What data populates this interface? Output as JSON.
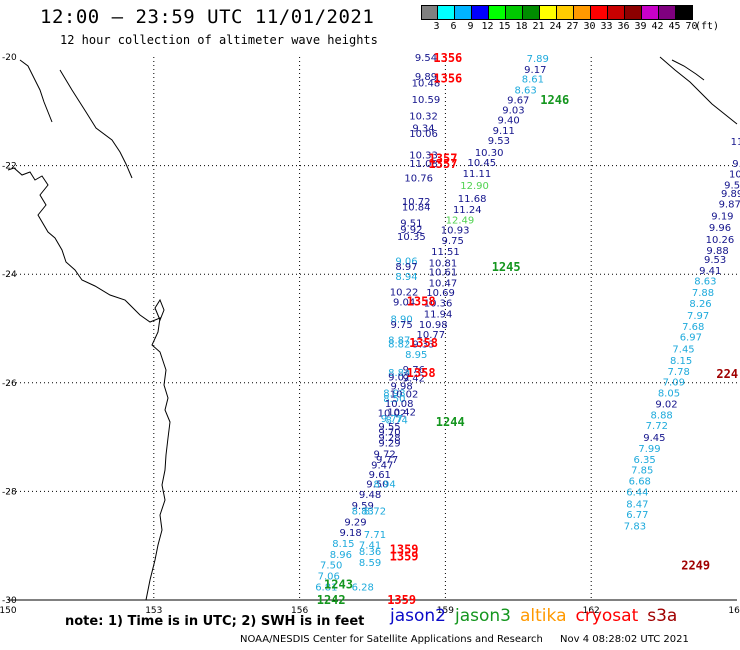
{
  "header": {
    "title": "12:00 — 23:59 UTC 11/01/2021",
    "subtitle": "12 hour collection of altimeter wave heights"
  },
  "legend": {
    "unit": "(ft)",
    "bins": [
      {
        "label": "3",
        "color": "#808080"
      },
      {
        "label": "6",
        "color": "#00ffff"
      },
      {
        "label": "9",
        "color": "#00b4ff"
      },
      {
        "label": "12",
        "color": "#0000ff"
      },
      {
        "label": "15",
        "color": "#00ff00"
      },
      {
        "label": "18",
        "color": "#00c800"
      },
      {
        "label": "21",
        "color": "#008c00"
      },
      {
        "label": "24",
        "color": "#ffff00"
      },
      {
        "label": "27",
        "color": "#ffcc00"
      },
      {
        "label": "30",
        "color": "#ff9900"
      },
      {
        "label": "33",
        "color": "#ff0000"
      },
      {
        "label": "36",
        "color": "#c80000"
      },
      {
        "label": "39",
        "color": "#8c0000"
      },
      {
        "label": "42",
        "color": "#c800c8"
      },
      {
        "label": "45",
        "color": "#7f007f"
      },
      {
        "label": "70",
        "color": "#000000"
      }
    ]
  },
  "colors": {
    "jason2": "#0a0ac8",
    "jason3": "#14961e",
    "altika": "#ff9900",
    "cryosat": "#ff0000",
    "s3a": "#a00000",
    "swh_cyan": "#1eaadc",
    "swh_blue": "#14148c",
    "swh_green": "#50d250"
  },
  "chart_data": {
    "type": "scatter",
    "xlim": [
      150,
      165
    ],
    "ylim": [
      -30,
      -20
    ],
    "x_ticks": [
      "150",
      "153",
      "156",
      "159",
      "162",
      "165"
    ],
    "y_ticks": [
      "-20",
      "-22",
      "-24",
      "-26",
      "-28",
      "-30"
    ],
    "grid": true,
    "track_labels": [
      {
        "text": "1356",
        "x": 159.05,
        "y": -20.0,
        "color": "cryosat"
      },
      {
        "text": "1356",
        "x": 159.05,
        "y": -20.38,
        "color": "cryosat"
      },
      {
        "text": "1246",
        "x": 161.25,
        "y": -20.77,
        "color": "jason3"
      },
      {
        "text": "1357",
        "x": 158.95,
        "y": -21.85,
        "color": "cryosat"
      },
      {
        "text": "1357",
        "x": 158.95,
        "y": -21.95,
        "color": "cryosat"
      },
      {
        "text": "1245",
        "x": 160.25,
        "y": -23.85,
        "color": "jason3"
      },
      {
        "text": "1358",
        "x": 158.5,
        "y": -24.48,
        "color": "cryosat"
      },
      {
        "text": "1358",
        "x": 158.55,
        "y": -25.25,
        "color": "cryosat"
      },
      {
        "text": "1358",
        "x": 158.5,
        "y": -25.8,
        "color": "cryosat"
      },
      {
        "text": "1244",
        "x": 159.1,
        "y": -26.7,
        "color": "jason3"
      },
      {
        "text": "1359",
        "x": 158.15,
        "y": -29.05,
        "color": "cryosat"
      },
      {
        "text": "1359",
        "x": 158.15,
        "y": -29.18,
        "color": "cryosat"
      },
      {
        "text": "1243",
        "x": 156.8,
        "y": -29.7,
        "color": "jason3"
      },
      {
        "text": "1242",
        "x": 156.65,
        "y": -29.98,
        "color": "jason3"
      },
      {
        "text": "1359",
        "x": 158.1,
        "y": -29.98,
        "color": "cryosat"
      },
      {
        "text": "2249",
        "x": 164.15,
        "y": -29.35,
        "color": "s3a"
      },
      {
        "text": "224",
        "x": 164.8,
        "y": -25.82,
        "color": "s3a"
      }
    ],
    "points": [
      {
        "x": 158.6,
        "y": -20.0,
        "v": "9.54",
        "c": "swh_blue"
      },
      {
        "x": 160.9,
        "y": -20.02,
        "v": "7.89",
        "c": "swh_cyan"
      },
      {
        "x": 160.85,
        "y": -20.22,
        "v": "9.17",
        "c": "swh_blue"
      },
      {
        "x": 158.6,
        "y": -20.35,
        "v": "9.89",
        "c": "swh_blue"
      },
      {
        "x": 158.6,
        "y": -20.47,
        "v": "10.48",
        "c": "swh_blue"
      },
      {
        "x": 160.8,
        "y": -20.4,
        "v": "8.61",
        "c": "swh_cyan"
      },
      {
        "x": 160.65,
        "y": -20.6,
        "v": "8.63",
        "c": "swh_cyan"
      },
      {
        "x": 158.6,
        "y": -20.77,
        "v": "10.59",
        "c": "swh_blue"
      },
      {
        "x": 160.5,
        "y": -20.78,
        "v": "9.67",
        "c": "swh_blue"
      },
      {
        "x": 160.4,
        "y": -20.97,
        "v": "9.03",
        "c": "swh_blue"
      },
      {
        "x": 158.55,
        "y": -21.08,
        "v": "10.32",
        "c": "swh_blue"
      },
      {
        "x": 160.3,
        "y": -21.15,
        "v": "9.40",
        "c": "swh_blue"
      },
      {
        "x": 158.55,
        "y": -21.3,
        "v": "9.34",
        "c": "swh_blue"
      },
      {
        "x": 160.2,
        "y": -21.34,
        "v": "9.11",
        "c": "swh_blue"
      },
      {
        "x": 158.55,
        "y": -21.4,
        "v": "10.06",
        "c": "swh_blue"
      },
      {
        "x": 160.1,
        "y": -21.53,
        "v": "9.53",
        "c": "swh_blue"
      },
      {
        "x": 158.55,
        "y": -21.8,
        "v": "10.33",
        "c": "swh_blue"
      },
      {
        "x": 159.9,
        "y": -21.75,
        "v": "10.30",
        "c": "swh_blue"
      },
      {
        "x": 158.55,
        "y": -21.95,
        "v": "11.08",
        "c": "swh_blue"
      },
      {
        "x": 159.75,
        "y": -21.93,
        "v": "10.45",
        "c": "swh_blue"
      },
      {
        "x": 158.45,
        "y": -22.22,
        "v": "10.76",
        "c": "swh_blue"
      },
      {
        "x": 159.65,
        "y": -22.14,
        "v": "11.11",
        "c": "swh_blue"
      },
      {
        "x": 159.6,
        "y": -22.36,
        "v": "12.90",
        "c": "swh_green"
      },
      {
        "x": 158.4,
        "y": -22.65,
        "v": "10.72",
        "c": "swh_blue"
      },
      {
        "x": 159.55,
        "y": -22.6,
        "v": "11.68",
        "c": "swh_blue"
      },
      {
        "x": 158.4,
        "y": -22.75,
        "v": "10.84",
        "c": "swh_blue"
      },
      {
        "x": 159.45,
        "y": -22.8,
        "v": "11.24",
        "c": "swh_blue"
      },
      {
        "x": 159.3,
        "y": -22.99,
        "v": "12.49",
        "c": "swh_green"
      },
      {
        "x": 158.3,
        "y": -23.05,
        "v": "9.51",
        "c": "swh_blue"
      },
      {
        "x": 159.2,
        "y": -23.18,
        "v": "10.93",
        "c": "swh_blue"
      },
      {
        "x": 158.3,
        "y": -23.17,
        "v": "9.92",
        "c": "swh_blue"
      },
      {
        "x": 158.3,
        "y": -23.3,
        "v": "10.35",
        "c": "swh_blue"
      },
      {
        "x": 159.15,
        "y": -23.37,
        "v": "9.75",
        "c": "swh_blue"
      },
      {
        "x": 159.0,
        "y": -23.57,
        "v": "11.51",
        "c": "swh_blue"
      },
      {
        "x": 158.2,
        "y": -23.75,
        "v": "9.06",
        "c": "swh_cyan"
      },
      {
        "x": 158.95,
        "y": -23.78,
        "v": "10.81",
        "c": "swh_blue"
      },
      {
        "x": 158.2,
        "y": -23.85,
        "v": "8.97",
        "c": "swh_blue"
      },
      {
        "x": 158.95,
        "y": -23.95,
        "v": "10.61",
        "c": "swh_blue"
      },
      {
        "x": 158.2,
        "y": -24.03,
        "v": "8.94",
        "c": "swh_cyan"
      },
      {
        "x": 158.95,
        "y": -24.15,
        "v": "10.47",
        "c": "swh_blue"
      },
      {
        "x": 158.15,
        "y": -24.32,
        "v": "10.22",
        "c": "swh_blue"
      },
      {
        "x": 158.9,
        "y": -24.33,
        "v": "10.69",
        "c": "swh_blue"
      },
      {
        "x": 158.15,
        "y": -24.5,
        "v": "9.04",
        "c": "swh_blue"
      },
      {
        "x": 158.85,
        "y": -24.52,
        "v": "10.36",
        "c": "swh_blue"
      },
      {
        "x": 158.85,
        "y": -24.72,
        "v": "11.94",
        "c": "swh_blue"
      },
      {
        "x": 158.1,
        "y": -24.82,
        "v": "8.90",
        "c": "swh_cyan"
      },
      {
        "x": 158.1,
        "y": -24.92,
        "v": "9.75",
        "c": "swh_blue"
      },
      {
        "x": 158.75,
        "y": -24.92,
        "v": "10.98",
        "c": "swh_blue"
      },
      {
        "x": 158.7,
        "y": -25.1,
        "v": "10.77",
        "c": "swh_blue"
      },
      {
        "x": 158.05,
        "y": -25.2,
        "v": "8.87",
        "c": "swh_cyan"
      },
      {
        "x": 158.05,
        "y": -25.28,
        "v": "8.82",
        "c": "swh_cyan"
      },
      {
        "x": 158.55,
        "y": -25.28,
        "v": "9.33",
        "c": "swh_blue"
      },
      {
        "x": 158.4,
        "y": -25.47,
        "v": "8.95",
        "c": "swh_cyan"
      },
      {
        "x": 158.35,
        "y": -25.75,
        "v": "9.76",
        "c": "swh_blue"
      },
      {
        "x": 158.05,
        "y": -25.8,
        "v": "8.84",
        "c": "swh_cyan"
      },
      {
        "x": 158.05,
        "y": -25.88,
        "v": "9.02",
        "c": "swh_blue"
      },
      {
        "x": 158.35,
        "y": -25.9,
        "v": "9.42",
        "c": "swh_blue"
      },
      {
        "x": 158.1,
        "y": -26.05,
        "v": "9.98",
        "c": "swh_blue"
      },
      {
        "x": 157.95,
        "y": -26.18,
        "v": "8.98",
        "c": "swh_cyan"
      },
      {
        "x": 158.15,
        "y": -26.2,
        "v": "10.02",
        "c": "swh_blue"
      },
      {
        "x": 157.95,
        "y": -26.28,
        "v": "8.50",
        "c": "swh_cyan"
      },
      {
        "x": 158.05,
        "y": -26.37,
        "v": "10.08",
        "c": "swh_blue"
      },
      {
        "x": 157.9,
        "y": -26.55,
        "v": "10.02",
        "c": "swh_blue"
      },
      {
        "x": 158.1,
        "y": -26.53,
        "v": "10.42",
        "c": "swh_blue"
      },
      {
        "x": 157.9,
        "y": -26.65,
        "v": "9.77",
        "c": "swh_cyan"
      },
      {
        "x": 158.0,
        "y": -26.68,
        "v": "8.74",
        "c": "swh_cyan"
      },
      {
        "x": 157.85,
        "y": -26.8,
        "v": "9.55",
        "c": "swh_blue"
      },
      {
        "x": 157.85,
        "y": -26.9,
        "v": "9.70",
        "c": "swh_blue"
      },
      {
        "x": 157.85,
        "y": -27.0,
        "v": "9.28",
        "c": "swh_blue"
      },
      {
        "x": 157.85,
        "y": -27.1,
        "v": "9.29",
        "c": "swh_blue"
      },
      {
        "x": 157.75,
        "y": -27.3,
        "v": "9.72",
        "c": "swh_blue"
      },
      {
        "x": 157.8,
        "y": -27.4,
        "v": "9.77",
        "c": "swh_blue"
      },
      {
        "x": 157.7,
        "y": -27.5,
        "v": "9.47",
        "c": "swh_blue"
      },
      {
        "x": 157.65,
        "y": -27.68,
        "v": "9.61",
        "c": "swh_blue"
      },
      {
        "x": 157.6,
        "y": -27.85,
        "v": "9.50",
        "c": "swh_blue"
      },
      {
        "x": 157.75,
        "y": -27.85,
        "v": "8.94",
        "c": "swh_cyan"
      },
      {
        "x": 157.45,
        "y": -28.05,
        "v": "9.48",
        "c": "swh_blue"
      },
      {
        "x": 157.3,
        "y": -28.25,
        "v": "9.59",
        "c": "swh_blue"
      },
      {
        "x": 157.3,
        "y": -28.35,
        "v": "8.83",
        "c": "swh_cyan"
      },
      {
        "x": 157.55,
        "y": -28.35,
        "v": "8.72",
        "c": "swh_cyan"
      },
      {
        "x": 157.15,
        "y": -28.55,
        "v": "9.29",
        "c": "swh_blue"
      },
      {
        "x": 157.05,
        "y": -28.75,
        "v": "9.18",
        "c": "swh_blue"
      },
      {
        "x": 157.55,
        "y": -28.78,
        "v": "7.71",
        "c": "swh_cyan"
      },
      {
        "x": 156.9,
        "y": -28.95,
        "v": "8.15",
        "c": "swh_cyan"
      },
      {
        "x": 157.45,
        "y": -28.98,
        "v": "7.41",
        "c": "swh_cyan"
      },
      {
        "x": 156.85,
        "y": -29.15,
        "v": "8.96",
        "c": "swh_cyan"
      },
      {
        "x": 157.45,
        "y": -29.1,
        "v": "8.36",
        "c": "swh_cyan"
      },
      {
        "x": 157.45,
        "y": -29.3,
        "v": "8.59",
        "c": "swh_cyan"
      },
      {
        "x": 156.65,
        "y": -29.35,
        "v": "7.50",
        "c": "swh_cyan"
      },
      {
        "x": 156.6,
        "y": -29.55,
        "v": "7.06",
        "c": "swh_cyan"
      },
      {
        "x": 156.55,
        "y": -29.75,
        "v": "6.81",
        "c": "swh_cyan"
      },
      {
        "x": 157.3,
        "y": -29.75,
        "v": "6.28",
        "c": "swh_cyan"
      },
      {
        "x": 165.0,
        "y": -21.55,
        "v": "11",
        "c": "swh_blue"
      },
      {
        "x": 165.0,
        "y": -21.95,
        "v": "9.",
        "c": "swh_blue"
      },
      {
        "x": 165.0,
        "y": -22.15,
        "v": "10.",
        "c": "swh_blue"
      },
      {
        "x": 164.9,
        "y": -22.35,
        "v": "9.5",
        "c": "swh_blue"
      },
      {
        "x": 164.9,
        "y": -22.5,
        "v": "9.89",
        "c": "swh_blue"
      },
      {
        "x": 164.85,
        "y": -22.7,
        "v": "9.87",
        "c": "swh_blue"
      },
      {
        "x": 164.7,
        "y": -22.92,
        "v": "9.19",
        "c": "swh_blue"
      },
      {
        "x": 164.65,
        "y": -23.13,
        "v": "9.96",
        "c": "swh_blue"
      },
      {
        "x": 164.65,
        "y": -23.35,
        "v": "10.26",
        "c": "swh_blue"
      },
      {
        "x": 164.6,
        "y": -23.55,
        "v": "9.88",
        "c": "swh_blue"
      },
      {
        "x": 164.55,
        "y": -23.72,
        "v": "9.53",
        "c": "swh_blue"
      },
      {
        "x": 164.45,
        "y": -23.92,
        "v": "9.41",
        "c": "swh_blue"
      },
      {
        "x": 164.35,
        "y": -24.12,
        "v": "8.63",
        "c": "swh_cyan"
      },
      {
        "x": 164.3,
        "y": -24.33,
        "v": "7.88",
        "c": "swh_cyan"
      },
      {
        "x": 164.25,
        "y": -24.53,
        "v": "8.26",
        "c": "swh_cyan"
      },
      {
        "x": 164.2,
        "y": -24.75,
        "v": "7.97",
        "c": "swh_cyan"
      },
      {
        "x": 164.1,
        "y": -24.95,
        "v": "7.68",
        "c": "swh_cyan"
      },
      {
        "x": 164.05,
        "y": -25.15,
        "v": "6.97",
        "c": "swh_cyan"
      },
      {
        "x": 163.9,
        "y": -25.37,
        "v": "7.45",
        "c": "swh_cyan"
      },
      {
        "x": 163.85,
        "y": -25.58,
        "v": "8.15",
        "c": "swh_cyan"
      },
      {
        "x": 163.8,
        "y": -25.78,
        "v": "7.78",
        "c": "swh_cyan"
      },
      {
        "x": 163.7,
        "y": -25.98,
        "v": "7.09",
        "c": "swh_cyan"
      },
      {
        "x": 163.6,
        "y": -26.18,
        "v": "8.05",
        "c": "swh_cyan"
      },
      {
        "x": 163.55,
        "y": -26.38,
        "v": "9.02",
        "c": "swh_blue"
      },
      {
        "x": 163.45,
        "y": -26.58,
        "v": "8.88",
        "c": "swh_cyan"
      },
      {
        "x": 163.35,
        "y": -26.78,
        "v": "7.72",
        "c": "swh_cyan"
      },
      {
        "x": 163.3,
        "y": -27.0,
        "v": "9.45",
        "c": "swh_blue"
      },
      {
        "x": 163.2,
        "y": -27.2,
        "v": "7.99",
        "c": "swh_cyan"
      },
      {
        "x": 163.1,
        "y": -27.4,
        "v": "6.35",
        "c": "swh_cyan"
      },
      {
        "x": 163.05,
        "y": -27.6,
        "v": "7.85",
        "c": "swh_cyan"
      },
      {
        "x": 163.0,
        "y": -27.8,
        "v": "6.68",
        "c": "swh_cyan"
      },
      {
        "x": 162.95,
        "y": -28.0,
        "v": "6.44",
        "c": "swh_cyan"
      },
      {
        "x": 162.95,
        "y": -28.22,
        "v": "8.47",
        "c": "swh_cyan"
      },
      {
        "x": 162.95,
        "y": -28.42,
        "v": "6.77",
        "c": "swh_cyan"
      },
      {
        "x": 162.9,
        "y": -28.63,
        "v": "7.83",
        "c": "swh_cyan"
      }
    ]
  },
  "footer": {
    "note": "note: 1) Time is in UTC; 2) SWH is in feet",
    "satellites": [
      {
        "name": "jason2",
        "color": "jason2"
      },
      {
        "name": "jason3",
        "color": "jason3"
      },
      {
        "name": "altika",
        "color": "altika"
      },
      {
        "name": "cryosat",
        "color": "cryosat"
      },
      {
        "name": "s3a",
        "color": "s3a"
      }
    ],
    "credit_org": "NOAA/NESDIS Center for Satellite Applications and Research",
    "credit_time": "Nov  4 08:28:02 UTC 2021"
  }
}
